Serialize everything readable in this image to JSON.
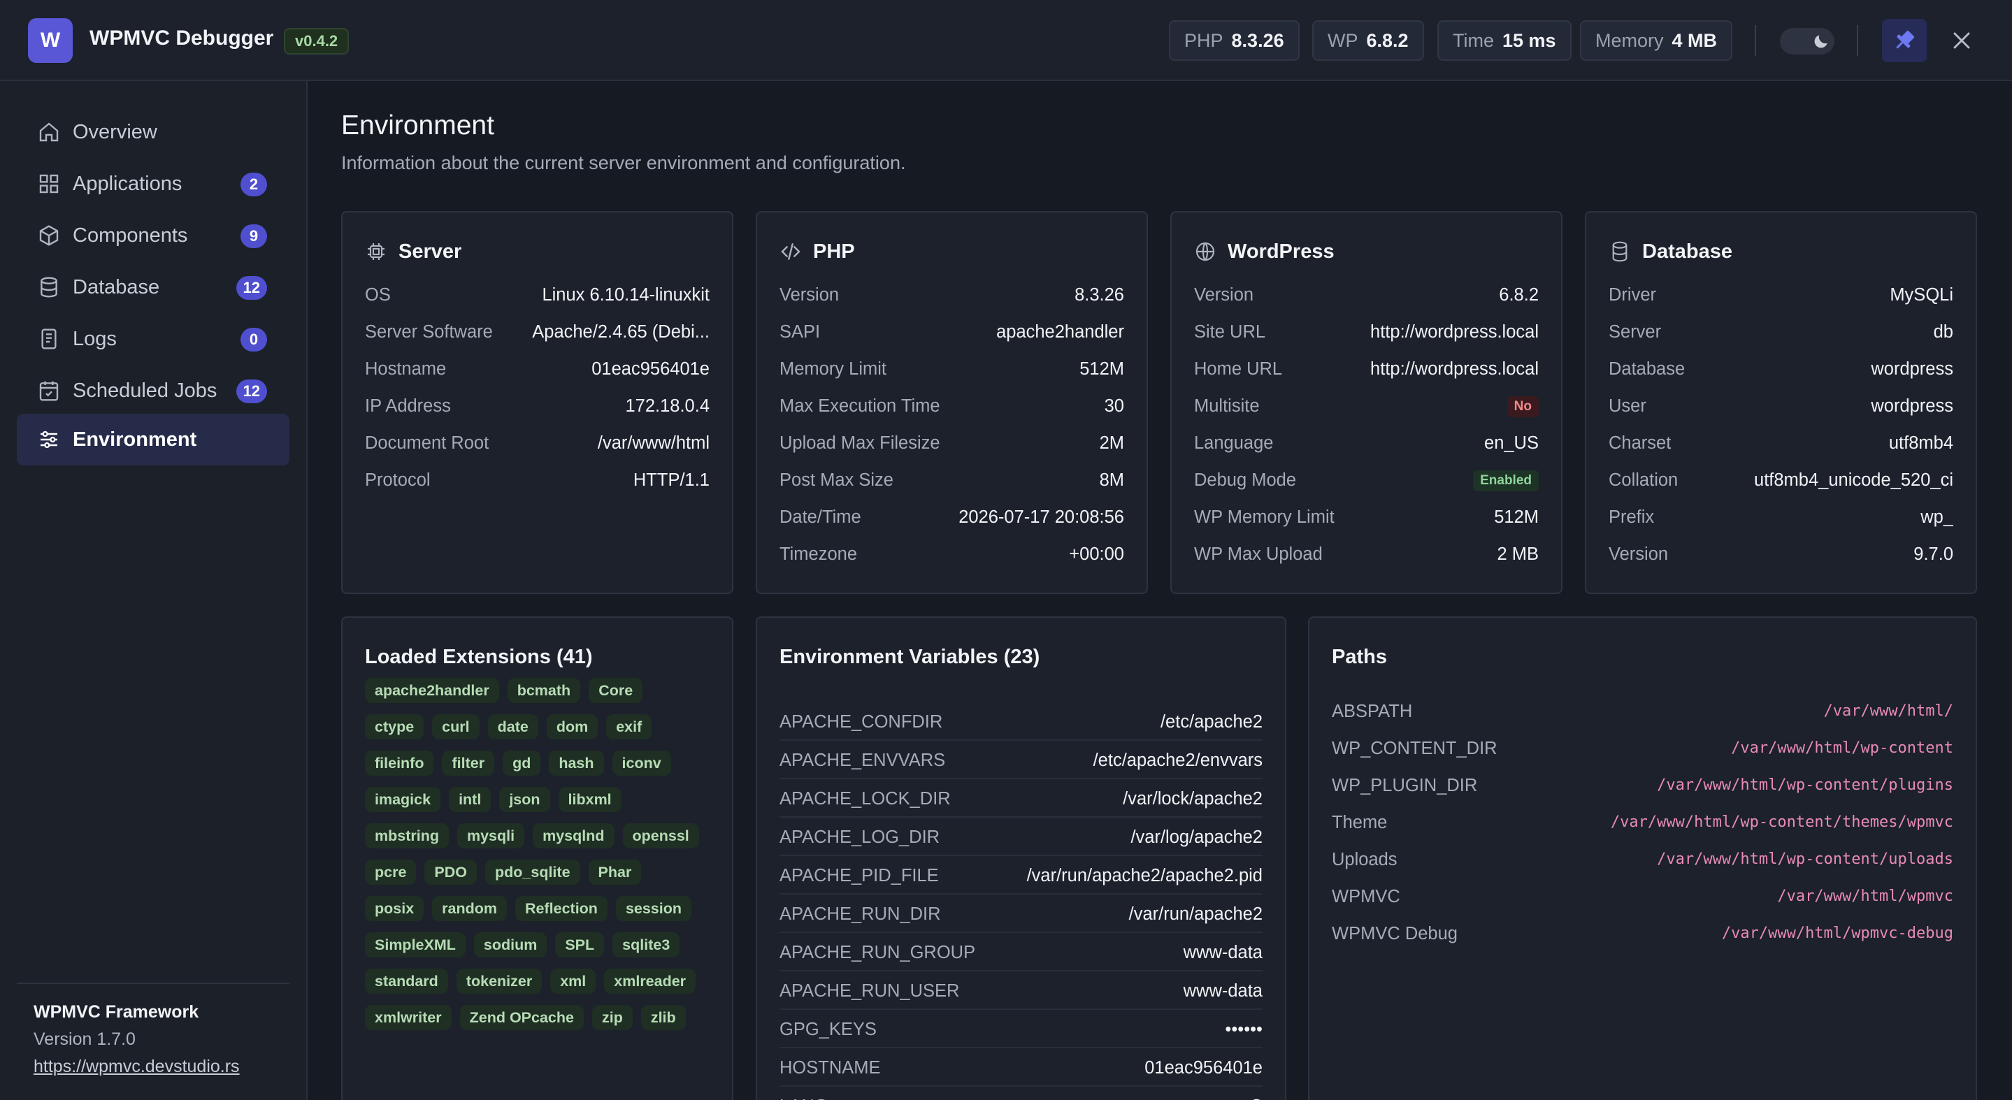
{
  "header": {
    "logo_letter": "W",
    "title": "WPMVC Debugger",
    "version": "v0.4.2",
    "stats": [
      {
        "label": "PHP",
        "value": "8.3.26"
      },
      {
        "label": "WP",
        "value": "6.8.2"
      },
      {
        "label": "Time",
        "value": "15 ms"
      },
      {
        "label": "Memory",
        "value": "4 MB"
      }
    ],
    "icons": {
      "theme": "moon-icon",
      "pin": "pin-icon",
      "close": "close-icon"
    }
  },
  "sidebar": {
    "items": [
      {
        "label": "Overview",
        "count": "",
        "icon": "home-icon"
      },
      {
        "label": "Applications",
        "count": "2",
        "icon": "grid-icon"
      },
      {
        "label": "Components",
        "count": "9",
        "icon": "cube-icon"
      },
      {
        "label": "Database",
        "count": "12",
        "icon": "database-icon"
      },
      {
        "label": "Logs",
        "count": "0",
        "icon": "document-icon"
      },
      {
        "label": "Scheduled Jobs",
        "count": "12",
        "icon": "calendar-icon"
      },
      {
        "label": "Environment",
        "count": "",
        "icon": "sliders-icon",
        "active": true
      }
    ],
    "footer": {
      "name": "WPMVC Framework",
      "version": "Version 1.7.0",
      "link": "https://wpmvc.devstudio.rs"
    }
  },
  "main": {
    "title": "Environment",
    "subtitle": "Information about the current server environment and configuration.",
    "server": {
      "title": "Server",
      "rows": [
        {
          "k": "OS",
          "v": "Linux 6.10.14-linuxkit"
        },
        {
          "k": "Server Software",
          "v": "Apache/2.4.65 (Debi..."
        },
        {
          "k": "Hostname",
          "v": "01eac956401e"
        },
        {
          "k": "IP Address",
          "v": "172.18.0.4"
        },
        {
          "k": "Document Root",
          "v": "/var/www/html"
        },
        {
          "k": "Protocol",
          "v": "HTTP/1.1"
        }
      ]
    },
    "php": {
      "title": "PHP",
      "rows": [
        {
          "k": "Version",
          "v": "8.3.26"
        },
        {
          "k": "SAPI",
          "v": "apache2handler"
        },
        {
          "k": "Memory Limit",
          "v": "512M"
        },
        {
          "k": "Max Execution Time",
          "v": "30"
        },
        {
          "k": "Upload Max Filesize",
          "v": "2M"
        },
        {
          "k": "Post Max Size",
          "v": "8M"
        },
        {
          "k": "Date/Time",
          "v": "2026-07-17 20:08:56"
        },
        {
          "k": "Timezone",
          "v": "+00:00"
        }
      ]
    },
    "wordpress": {
      "title": "WordPress",
      "rows": [
        {
          "k": "Version",
          "v": "6.8.2"
        },
        {
          "k": "Site URL",
          "v": "http://wordpress.local"
        },
        {
          "k": "Home URL",
          "v": "http://wordpress.local"
        },
        {
          "k": "Multisite",
          "v": "No"
        },
        {
          "k": "Language",
          "v": "en_US"
        },
        {
          "k": "Debug Mode",
          "v": "Enabled"
        },
        {
          "k": "WP Memory Limit",
          "v": "512M"
        },
        {
          "k": "WP Max Upload",
          "v": "2 MB"
        }
      ]
    },
    "database": {
      "title": "Database",
      "rows": [
        {
          "k": "Driver",
          "v": "MySQLi"
        },
        {
          "k": "Server",
          "v": "db"
        },
        {
          "k": "Database",
          "v": "wordpress"
        },
        {
          "k": "User",
          "v": "wordpress"
        },
        {
          "k": "Charset",
          "v": "utf8mb4"
        },
        {
          "k": "Collation",
          "v": "utf8mb4_unicode_520_ci"
        },
        {
          "k": "Prefix",
          "v": "wp_"
        },
        {
          "k": "Version",
          "v": "9.7.0"
        }
      ]
    },
    "extensions": {
      "title": "Loaded Extensions (41)",
      "items": [
        "apache2handler",
        "bcmath",
        "Core",
        "ctype",
        "curl",
        "date",
        "dom",
        "exif",
        "fileinfo",
        "filter",
        "gd",
        "hash",
        "iconv",
        "imagick",
        "intl",
        "json",
        "libxml",
        "mbstring",
        "mysqli",
        "mysqlnd",
        "openssl",
        "pcre",
        "PDO",
        "pdo_sqlite",
        "Phar",
        "posix",
        "random",
        "Reflection",
        "session",
        "SimpleXML",
        "sodium",
        "SPL",
        "sqlite3",
        "standard",
        "tokenizer",
        "xml",
        "xmlreader",
        "xmlwriter",
        "Zend OPcache",
        "zip",
        "zlib"
      ]
    },
    "env_vars": {
      "title": "Environment Variables (23)",
      "rows": [
        {
          "k": "APACHE_CONFDIR",
          "v": "/etc/apache2"
        },
        {
          "k": "APACHE_ENVVARS",
          "v": "/etc/apache2/envvars"
        },
        {
          "k": "APACHE_LOCK_DIR",
          "v": "/var/lock/apache2"
        },
        {
          "k": "APACHE_LOG_DIR",
          "v": "/var/log/apache2"
        },
        {
          "k": "APACHE_PID_FILE",
          "v": "/var/run/apache2/apache2.pid"
        },
        {
          "k": "APACHE_RUN_DIR",
          "v": "/var/run/apache2"
        },
        {
          "k": "APACHE_RUN_GROUP",
          "v": "www-data"
        },
        {
          "k": "APACHE_RUN_USER",
          "v": "www-data"
        },
        {
          "k": "GPG_KEYS",
          "v": "••••••"
        },
        {
          "k": "HOSTNAME",
          "v": "01eac956401e"
        },
        {
          "k": "LANG",
          "v": "C"
        }
      ]
    },
    "paths": {
      "title": "Paths",
      "rows": [
        {
          "k": "ABSPATH",
          "v": "/var/www/html/"
        },
        {
          "k": "WP_CONTENT_DIR",
          "v": "/var/www/html/wp-content"
        },
        {
          "k": "WP_PLUGIN_DIR",
          "v": "/var/www/html/wp-content/plugins"
        },
        {
          "k": "Theme",
          "v": "/var/www/html/wp-content/themes/wpmvc"
        },
        {
          "k": "Uploads",
          "v": "/var/www/html/wp-content/uploads"
        },
        {
          "k": "WPMVC",
          "v": "/var/www/html/wpmvc"
        },
        {
          "k": "WPMVC Debug",
          "v": "/var/www/html/wpmvc-debug"
        }
      ]
    }
  }
}
